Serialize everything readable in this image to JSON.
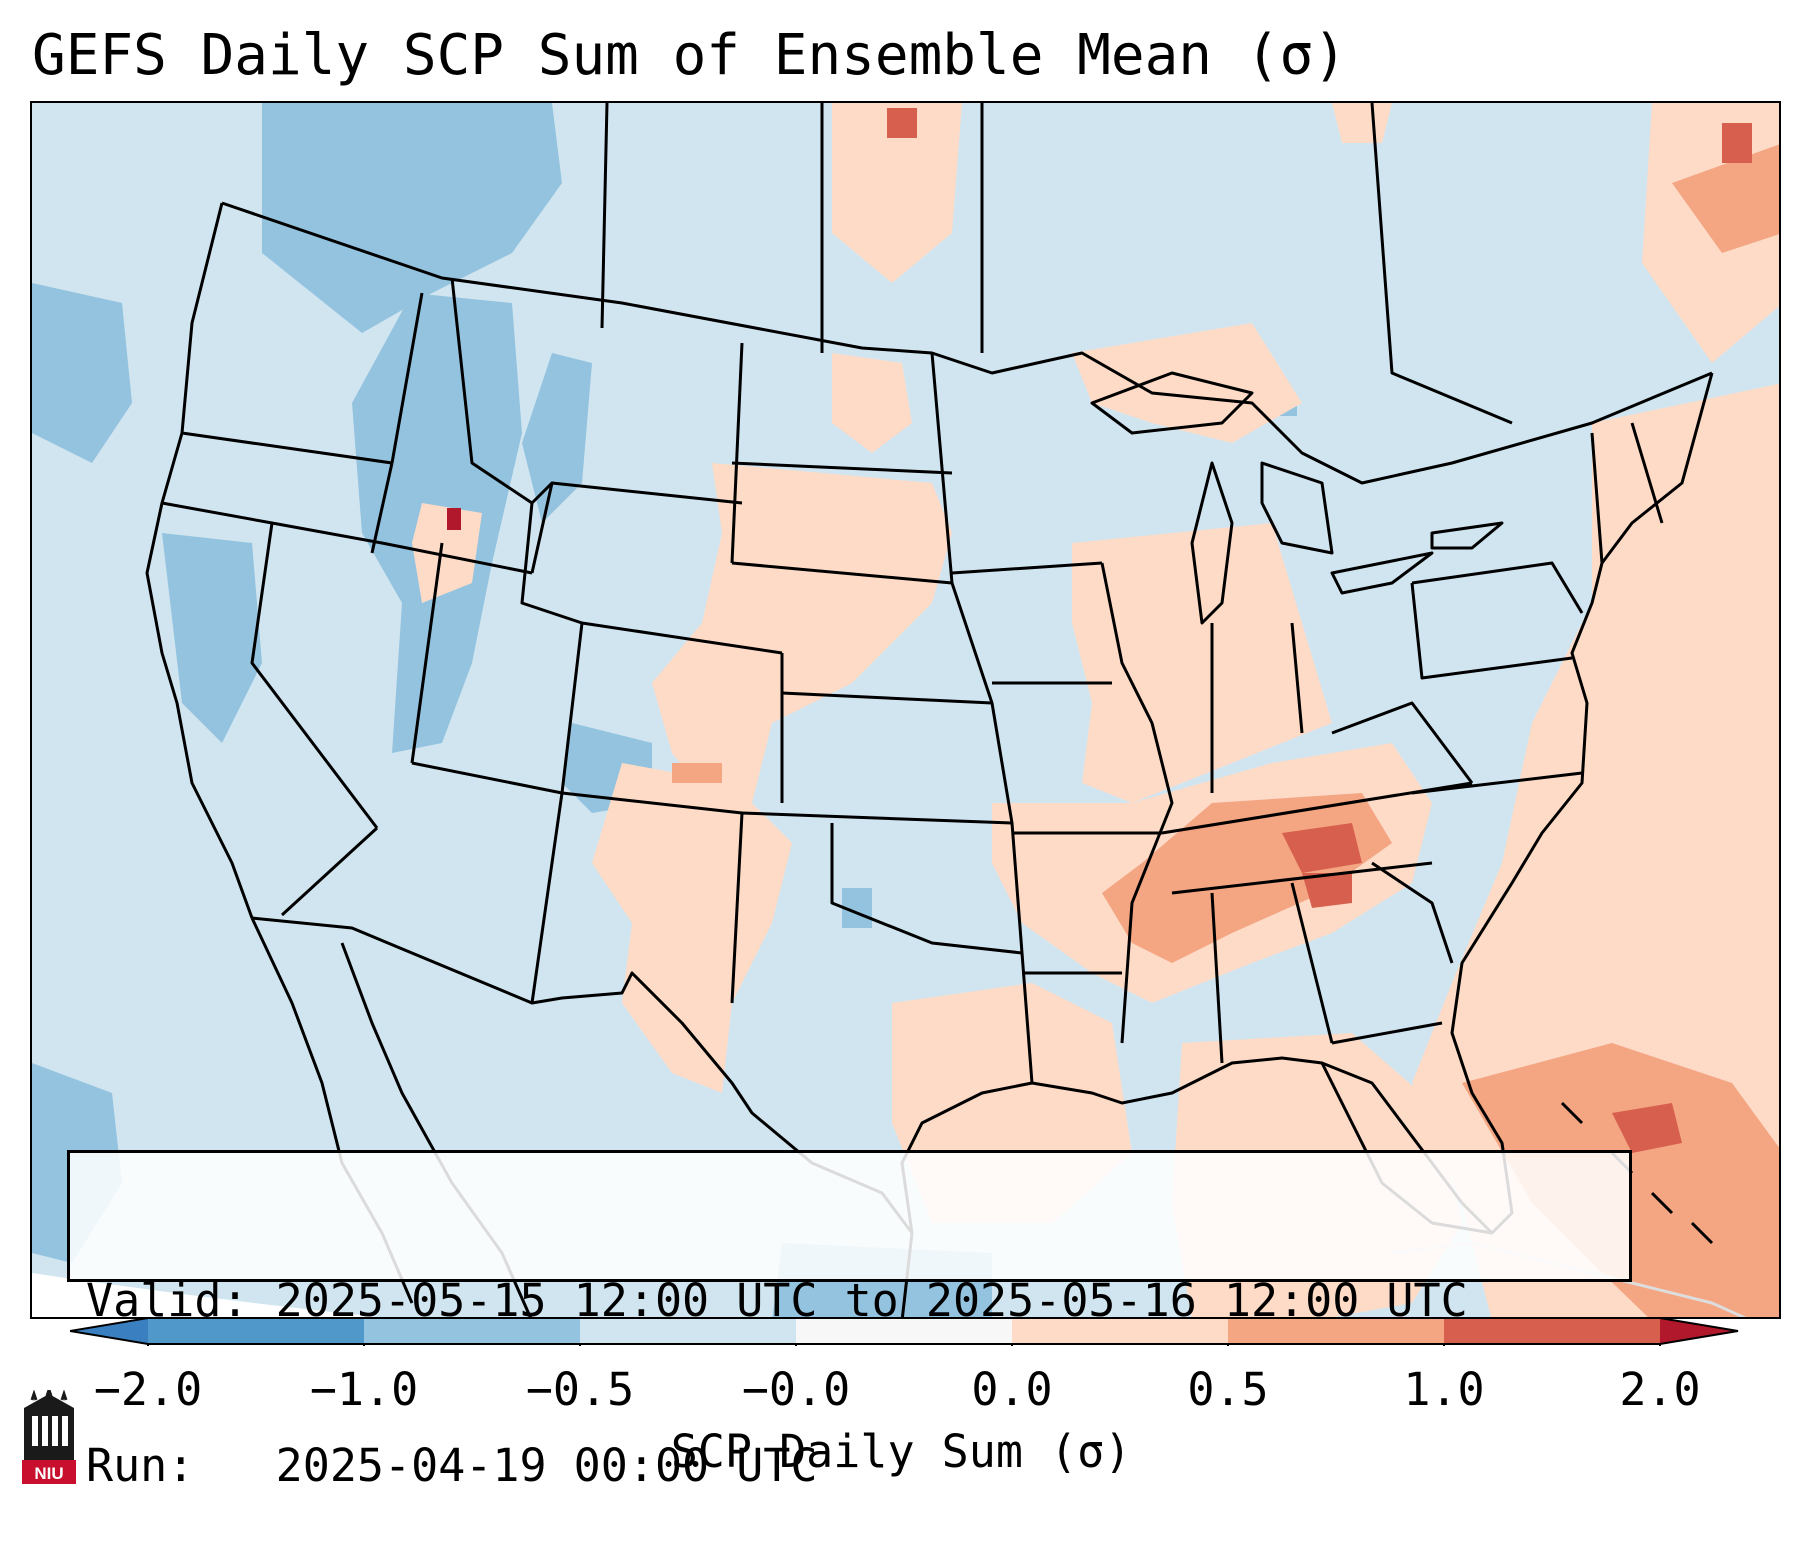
{
  "title": "GEFS Daily SCP Sum of Ensemble Mean (σ)",
  "info": {
    "valid": "Valid: 2025-05-15 12:00 UTC to 2025-05-16 12:00 UTC",
    "run": "Run:   2025-04-19 00:00 UTC"
  },
  "colorbar": {
    "label": "SCP Daily Sum (σ)",
    "ticks": [
      "−2.0",
      "−1.0",
      "−0.5",
      "−0.0",
      "0.0",
      "0.5",
      "1.0",
      "2.0"
    ],
    "bins": [
      {
        "range": "below -2.0",
        "color": "#3a7fc0"
      },
      {
        "range": "-2.0 to -1.0",
        "color": "#4f98c9"
      },
      {
        "range": "-1.0 to -0.5",
        "color": "#93c3df"
      },
      {
        "range": "-0.5 to -0.0",
        "color": "#d1e5f0"
      },
      {
        "range": "-0.0 to 0.0",
        "color": "#f7f7f7"
      },
      {
        "range": "0.0 to 0.5",
        "color": "#fddbc7"
      },
      {
        "range": "0.5 to 1.0",
        "color": "#f4a582"
      },
      {
        "range": "1.0 to 2.0",
        "color": "#d6604d"
      },
      {
        "range": "above 2.0",
        "color": "#b2182b"
      }
    ]
  },
  "logo": {
    "text": "NIU",
    "icon": "niu-logo-icon"
  }
}
